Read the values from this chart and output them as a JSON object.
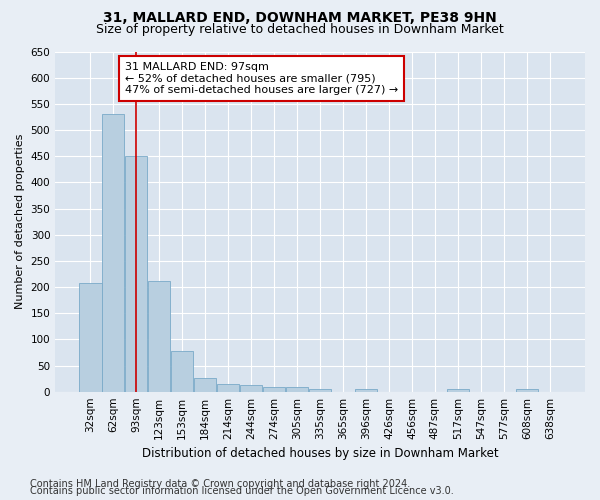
{
  "title": "31, MALLARD END, DOWNHAM MARKET, PE38 9HN",
  "subtitle": "Size of property relative to detached houses in Downham Market",
  "xlabel": "Distribution of detached houses by size in Downham Market",
  "ylabel": "Number of detached properties",
  "categories": [
    "32sqm",
    "62sqm",
    "93sqm",
    "123sqm",
    "153sqm",
    "184sqm",
    "214sqm",
    "244sqm",
    "274sqm",
    "305sqm",
    "335sqm",
    "365sqm",
    "396sqm",
    "426sqm",
    "456sqm",
    "487sqm",
    "517sqm",
    "547sqm",
    "577sqm",
    "608sqm",
    "638sqm"
  ],
  "values": [
    207,
    530,
    450,
    212,
    78,
    26,
    15,
    12,
    8,
    8,
    6,
    0,
    6,
    0,
    0,
    0,
    5,
    0,
    0,
    5,
    0
  ],
  "bar_color": "#b8cfe0",
  "bar_edge_color": "#7aaac8",
  "vline_index": 2,
  "vline_color": "#cc0000",
  "annotation_text": "31 MALLARD END: 97sqm\n← 52% of detached houses are smaller (795)\n47% of semi-detached houses are larger (727) →",
  "annotation_box_facecolor": "#ffffff",
  "annotation_box_edgecolor": "#cc0000",
  "ylim": [
    0,
    650
  ],
  "yticks": [
    0,
    50,
    100,
    150,
    200,
    250,
    300,
    350,
    400,
    450,
    500,
    550,
    600,
    650
  ],
  "footer_line1": "Contains HM Land Registry data © Crown copyright and database right 2024.",
  "footer_line2": "Contains public sector information licensed under the Open Government Licence v3.0.",
  "bg_color": "#e8eef5",
  "plot_bg_color": "#dae4ef",
  "grid_color": "#ffffff",
  "title_fontsize": 10,
  "subtitle_fontsize": 9,
  "xlabel_fontsize": 8.5,
  "ylabel_fontsize": 8,
  "tick_fontsize": 7.5,
  "footer_fontsize": 7,
  "annot_fontsize": 8
}
